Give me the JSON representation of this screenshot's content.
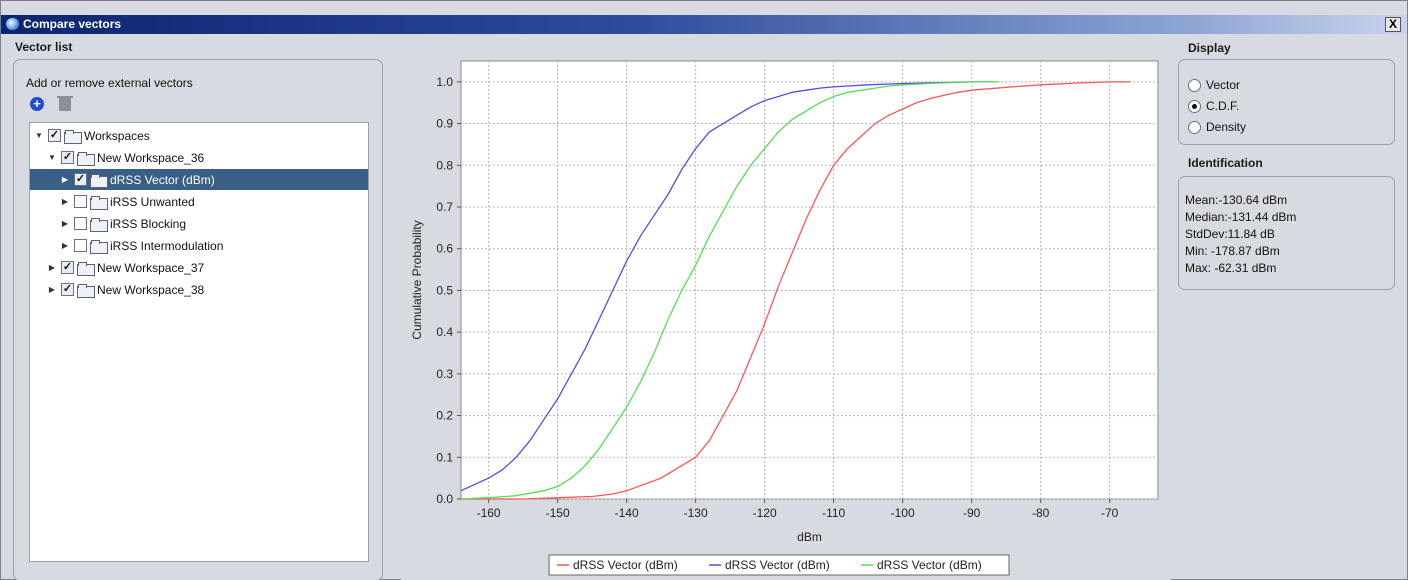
{
  "window": {
    "title": "Compare vectors",
    "close_label": "X"
  },
  "left": {
    "section_title": "Vector list",
    "add_remove_label": "Add or remove external vectors",
    "add_icon_glyph": "+",
    "tree": [
      {
        "label": "Workspaces",
        "level": 0,
        "checked": true,
        "expanded": true,
        "selected": false
      },
      {
        "label": "New Workspace_36",
        "level": 1,
        "checked": true,
        "expanded": true,
        "selected": false
      },
      {
        "label": "dRSS Vector (dBm)",
        "level": 2,
        "checked": true,
        "expanded": false,
        "selected": true
      },
      {
        "label": "iRSS Unwanted",
        "level": 2,
        "checked": false,
        "expanded": false,
        "selected": false
      },
      {
        "label": "iRSS Blocking",
        "level": 2,
        "checked": false,
        "expanded": false,
        "selected": false
      },
      {
        "label": "iRSS Intermodulation",
        "level": 2,
        "checked": false,
        "expanded": false,
        "selected": false
      },
      {
        "label": "New Workspace_37",
        "level": 1,
        "checked": true,
        "expanded": false,
        "selected": false
      },
      {
        "label": "New Workspace_38",
        "level": 1,
        "checked": true,
        "expanded": false,
        "selected": false
      }
    ]
  },
  "display": {
    "section_title": "Display",
    "options": [
      "Vector",
      "C.D.F.",
      "Density"
    ],
    "selected": "C.D.F."
  },
  "identification": {
    "section_title": "Identification",
    "mean": "Mean:-130.64 dBm",
    "median": "Median:-131.44 dBm",
    "stddev": "StdDev:11.84 dB",
    "min": "Min: -178.87 dBm",
    "max": "Max: -62.31 dBm"
  },
  "chart_data": {
    "type": "line",
    "xlabel": "dBm",
    "ylabel": "Cumulative Probability",
    "xlim": [
      -164,
      -63
    ],
    "ylim": [
      0,
      1.05
    ],
    "xticks": [
      -160,
      -150,
      -140,
      -130,
      -120,
      -110,
      -100,
      -90,
      -80,
      -70
    ],
    "yticks": [
      0.0,
      0.1,
      0.2,
      0.3,
      0.4,
      0.5,
      0.6,
      0.7,
      0.8,
      0.9,
      1.0
    ],
    "ytick_labels": [
      "0.0",
      "0.1",
      "0.2",
      "0.3",
      "0.4",
      "0.5",
      "0.6",
      "0.7",
      "0.8",
      "0.9",
      "1.0"
    ],
    "grid": true,
    "legend": "bottom",
    "series": [
      {
        "name": "dRSS Vector (dBm)",
        "color": "#ff5555",
        "x": [
          -164,
          -155,
          -150,
          -145,
          -142,
          -140,
          -138,
          -135,
          -132,
          -130,
          -128,
          -126,
          -124,
          -122,
          -120,
          -118,
          -116,
          -114,
          -112,
          -110,
          -108,
          -106,
          -104,
          -102,
          -100,
          -98,
          -96,
          -94,
          -92,
          -90,
          -85,
          -80,
          -75,
          -70,
          -67
        ],
        "y": [
          0.0,
          0.0,
          0.003,
          0.006,
          0.012,
          0.02,
          0.032,
          0.05,
          0.08,
          0.1,
          0.14,
          0.2,
          0.26,
          0.34,
          0.42,
          0.51,
          0.59,
          0.67,
          0.74,
          0.8,
          0.84,
          0.87,
          0.9,
          0.92,
          0.935,
          0.95,
          0.96,
          0.968,
          0.975,
          0.98,
          0.987,
          0.993,
          0.997,
          1.0,
          1.0
        ]
      },
      {
        "name": "dRSS Vector (dBm)",
        "color": "#4f4fe8",
        "x": [
          -164,
          -160,
          -158,
          -156,
          -154,
          -152,
          -150,
          -148,
          -146,
          -144,
          -142,
          -140,
          -138,
          -136,
          -134,
          -132,
          -130,
          -128,
          -126,
          -124,
          -122,
          -120,
          -118,
          -116,
          -114,
          -112,
          -110,
          -108,
          -105,
          -100,
          -95,
          -90,
          -87
        ],
        "y": [
          0.02,
          0.05,
          0.07,
          0.1,
          0.14,
          0.19,
          0.24,
          0.3,
          0.36,
          0.43,
          0.5,
          0.57,
          0.63,
          0.68,
          0.73,
          0.79,
          0.84,
          0.88,
          0.9,
          0.92,
          0.94,
          0.955,
          0.965,
          0.975,
          0.98,
          0.985,
          0.988,
          0.99,
          0.993,
          0.996,
          0.998,
          1.0,
          1.0
        ]
      },
      {
        "name": "dRSS Vector (dBm)",
        "color": "#55dd55",
        "x": [
          -164,
          -160,
          -156,
          -152,
          -150,
          -148,
          -146,
          -144,
          -142,
          -140,
          -138,
          -136,
          -134,
          -132,
          -130,
          -128,
          -126,
          -124,
          -122,
          -120,
          -118,
          -116,
          -114,
          -112,
          -110,
          -108,
          -106,
          -104,
          -102,
          -100,
          -95,
          -90,
          -86
        ],
        "y": [
          0.0,
          0.003,
          0.008,
          0.02,
          0.03,
          0.05,
          0.08,
          0.12,
          0.17,
          0.22,
          0.28,
          0.35,
          0.43,
          0.5,
          0.56,
          0.63,
          0.69,
          0.75,
          0.8,
          0.84,
          0.88,
          0.91,
          0.93,
          0.95,
          0.965,
          0.975,
          0.98,
          0.985,
          0.99,
          0.993,
          0.997,
          1.0,
          1.0
        ]
      }
    ]
  }
}
